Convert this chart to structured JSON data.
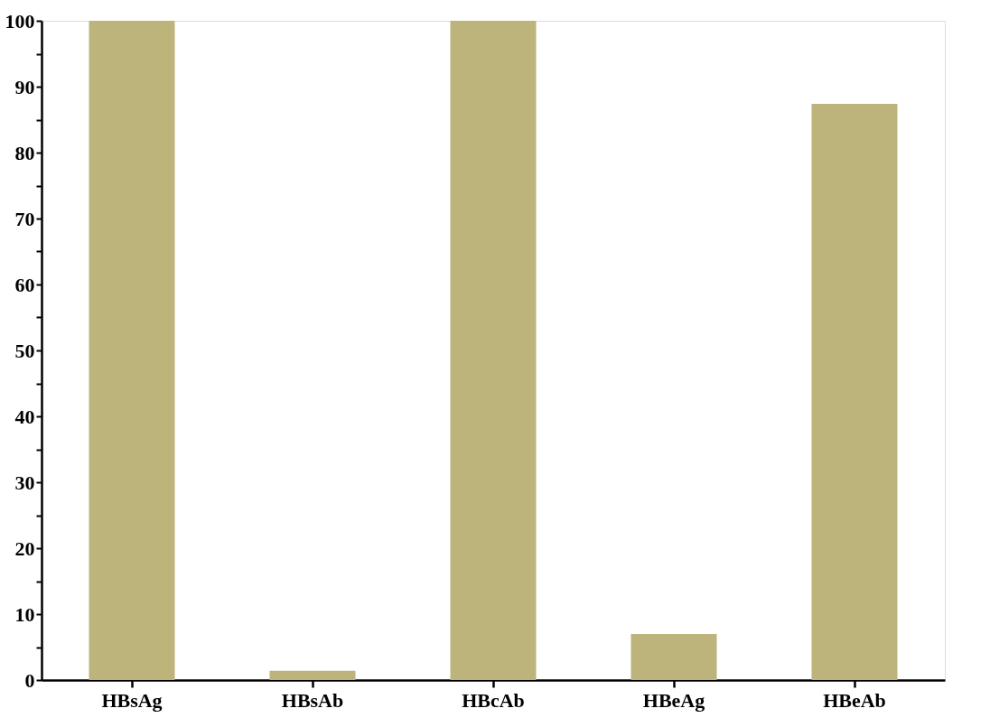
{
  "chart_data": {
    "type": "bar",
    "categories": [
      "HBsAg",
      "HBsAb",
      "HBcAb",
      "HBeAg",
      "HBeAb"
    ],
    "values": [
      100,
      1.4,
      100,
      7.0,
      87.4
    ],
    "color": "#bdb47b",
    "ylim": [
      0,
      100
    ],
    "yticks": [
      0,
      {
        "value": 5,
        "label": null
      },
      10,
      {
        "value": 15,
        "label": null
      },
      20,
      {
        "value": 25,
        "label": null
      },
      30,
      {
        "value": 35,
        "label": null
      },
      40,
      {
        "value": 45,
        "label": null
      },
      50,
      {
        "value": 55,
        "label": null
      },
      60,
      {
        "value": 65,
        "label": null
      },
      70,
      {
        "value": 75,
        "label": null
      },
      80,
      {
        "value": 85,
        "label": null
      },
      90,
      {
        "value": 95,
        "label": null
      },
      100
    ],
    "grid": false
  }
}
